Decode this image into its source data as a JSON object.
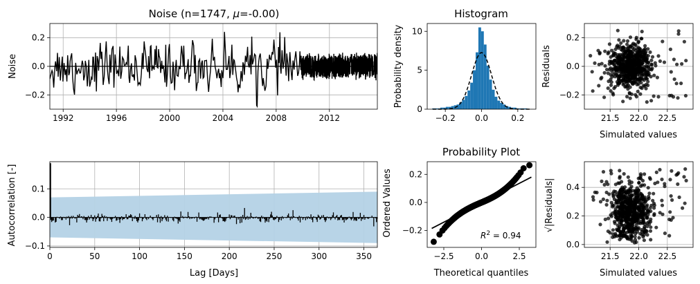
{
  "colors": {
    "line": "#000000",
    "hist": "#1f77b4",
    "band": "#b4d2e6",
    "grid": "#b0b0b0",
    "scatter": "#000000"
  },
  "chart_data": [
    {
      "id": "noise",
      "type": "line",
      "title": "Noise (n=1747, μ=-0.00)",
      "title_main": "Noise (n=1747, ",
      "title_mu": "μ",
      "title_tail": "=-0.00)",
      "xlabel": "",
      "ylabel": "Noise",
      "xlim": [
        1991,
        2015.6
      ],
      "ylim": [
        -0.3,
        0.3
      ],
      "xticks": [
        1992,
        1996,
        2000,
        2004,
        2008,
        2012
      ],
      "yticks": [
        -0.2,
        0.0,
        0.2
      ],
      "n": 1747,
      "mean": -0.0,
      "hline": 0.0,
      "grid": true,
      "note": "series is a dense approximate reconstruction; amplitude ~±0.25, denser after 2010"
    },
    {
      "id": "histogram",
      "type": "bar",
      "title": "Histogram",
      "xlabel": "",
      "ylabel": "Probability density",
      "xlim": [
        -0.3,
        0.3
      ],
      "ylim": [
        0,
        11
      ],
      "xticks": [
        -0.2,
        0.0,
        0.2
      ],
      "yticks": [
        0,
        5,
        10
      ],
      "bins": [
        -0.265,
        -0.25,
        -0.235,
        -0.22,
        -0.205,
        -0.19,
        -0.175,
        -0.16,
        -0.145,
        -0.13,
        -0.115,
        -0.1,
        -0.085,
        -0.07,
        -0.055,
        -0.04,
        -0.025,
        -0.01,
        0.005,
        0.02,
        0.035,
        0.05,
        0.065,
        0.08,
        0.095,
        0.11,
        0.125,
        0.14,
        0.155,
        0.17,
        0.185,
        0.2,
        0.215,
        0.23,
        0.245
      ],
      "bin_width": 0.015,
      "density": [
        0.1,
        0.1,
        0.1,
        0.2,
        0.2,
        0.3,
        0.3,
        0.4,
        0.5,
        0.6,
        0.9,
        1.2,
        1.7,
        2.4,
        3.4,
        5.0,
        7.3,
        10.5,
        10.0,
        8.3,
        5.6,
        3.8,
        2.5,
        1.6,
        1.1,
        0.8,
        0.6,
        0.4,
        0.3,
        0.2,
        0.2,
        0.1,
        0.1,
        0.1,
        0.1
      ],
      "normal_fit": {
        "mean": 0.0,
        "std": 0.055,
        "style": "dashed"
      },
      "grid": false
    },
    {
      "id": "residuals_vs_sim",
      "type": "scatter",
      "title": "",
      "xlabel": "Simulated values",
      "ylabel": "Residuals",
      "xlim": [
        21.05,
        22.95
      ],
      "ylim": [
        -0.3,
        0.3
      ],
      "xticks": [
        21.5,
        22.0,
        22.5
      ],
      "yticks": [
        -0.2,
        0.0,
        0.2
      ],
      "cluster_center": [
        21.85,
        0.0
      ],
      "grid": true
    },
    {
      "id": "autocorrelation",
      "type": "bar",
      "title": "",
      "xlabel": "Lag [Days]",
      "ylabel": "Autocorrelation [-]",
      "xlim": [
        0,
        365
      ],
      "ylim": [
        -0.105,
        0.195
      ],
      "xticks": [
        0,
        50,
        100,
        150,
        200,
        250,
        300,
        350
      ],
      "yticks": [
        -0.1,
        0.0,
        0.1
      ],
      "lag0": 0.19,
      "band": {
        "start": 0.07,
        "end": 0.09
      },
      "grid": true
    },
    {
      "id": "probability_plot",
      "type": "scatter",
      "title": "Probability Plot",
      "xlabel": "Theoretical quantiles",
      "ylabel": "Ordered Values",
      "xlim": [
        -3.6,
        3.6
      ],
      "ylim": [
        -0.32,
        0.29
      ],
      "xticks": [
        -2.5,
        0.0,
        2.5
      ],
      "yticks": [
        -0.2,
        0.0,
        0.2
      ],
      "fit_line": {
        "x": [
          -3.3,
          3.3
        ],
        "y": [
          -0.185,
          0.18
        ]
      },
      "r2_prefix": "R",
      "r2_sup": "2",
      "r2_value": " = 0.94",
      "r2_text": "R2 = 0.94",
      "grid": false
    },
    {
      "id": "scale_location",
      "type": "scatter",
      "title": "",
      "xlabel": "Simulated values",
      "ylabel": "√|Residuals|",
      "xlim": [
        21.05,
        22.95
      ],
      "ylim": [
        -0.02,
        0.58
      ],
      "xticks": [
        21.5,
        22.0,
        22.5
      ],
      "yticks": [
        0.0,
        0.2,
        0.4
      ],
      "grid": true
    }
  ]
}
